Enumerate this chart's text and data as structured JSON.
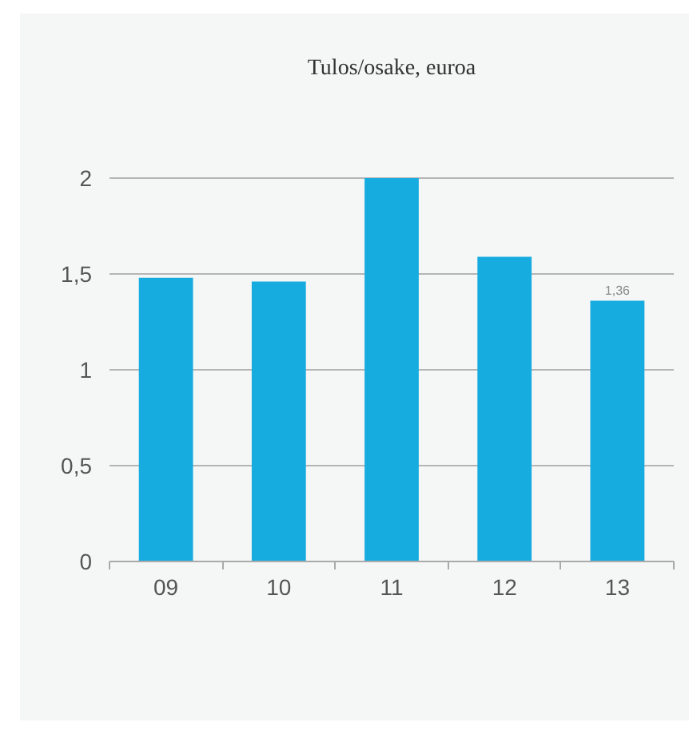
{
  "chart_data": {
    "type": "bar",
    "title": "Tulos/osake, euroa",
    "categories": [
      "09",
      "10",
      "11",
      "12",
      "13"
    ],
    "values": [
      1.48,
      1.46,
      2.0,
      1.59,
      1.36
    ],
    "value_labels": [
      null,
      null,
      null,
      null,
      "1,36"
    ],
    "color": "#17ace0",
    "ylim": [
      0,
      2.3
    ],
    "yticks": [
      {
        "value": 0,
        "label": "0"
      },
      {
        "value": 0.5,
        "label": "0,5"
      },
      {
        "value": 1,
        "label": "1"
      },
      {
        "value": 1.5,
        "label": "1,5"
      },
      {
        "value": 2,
        "label": "2"
      }
    ],
    "grid": "y"
  }
}
